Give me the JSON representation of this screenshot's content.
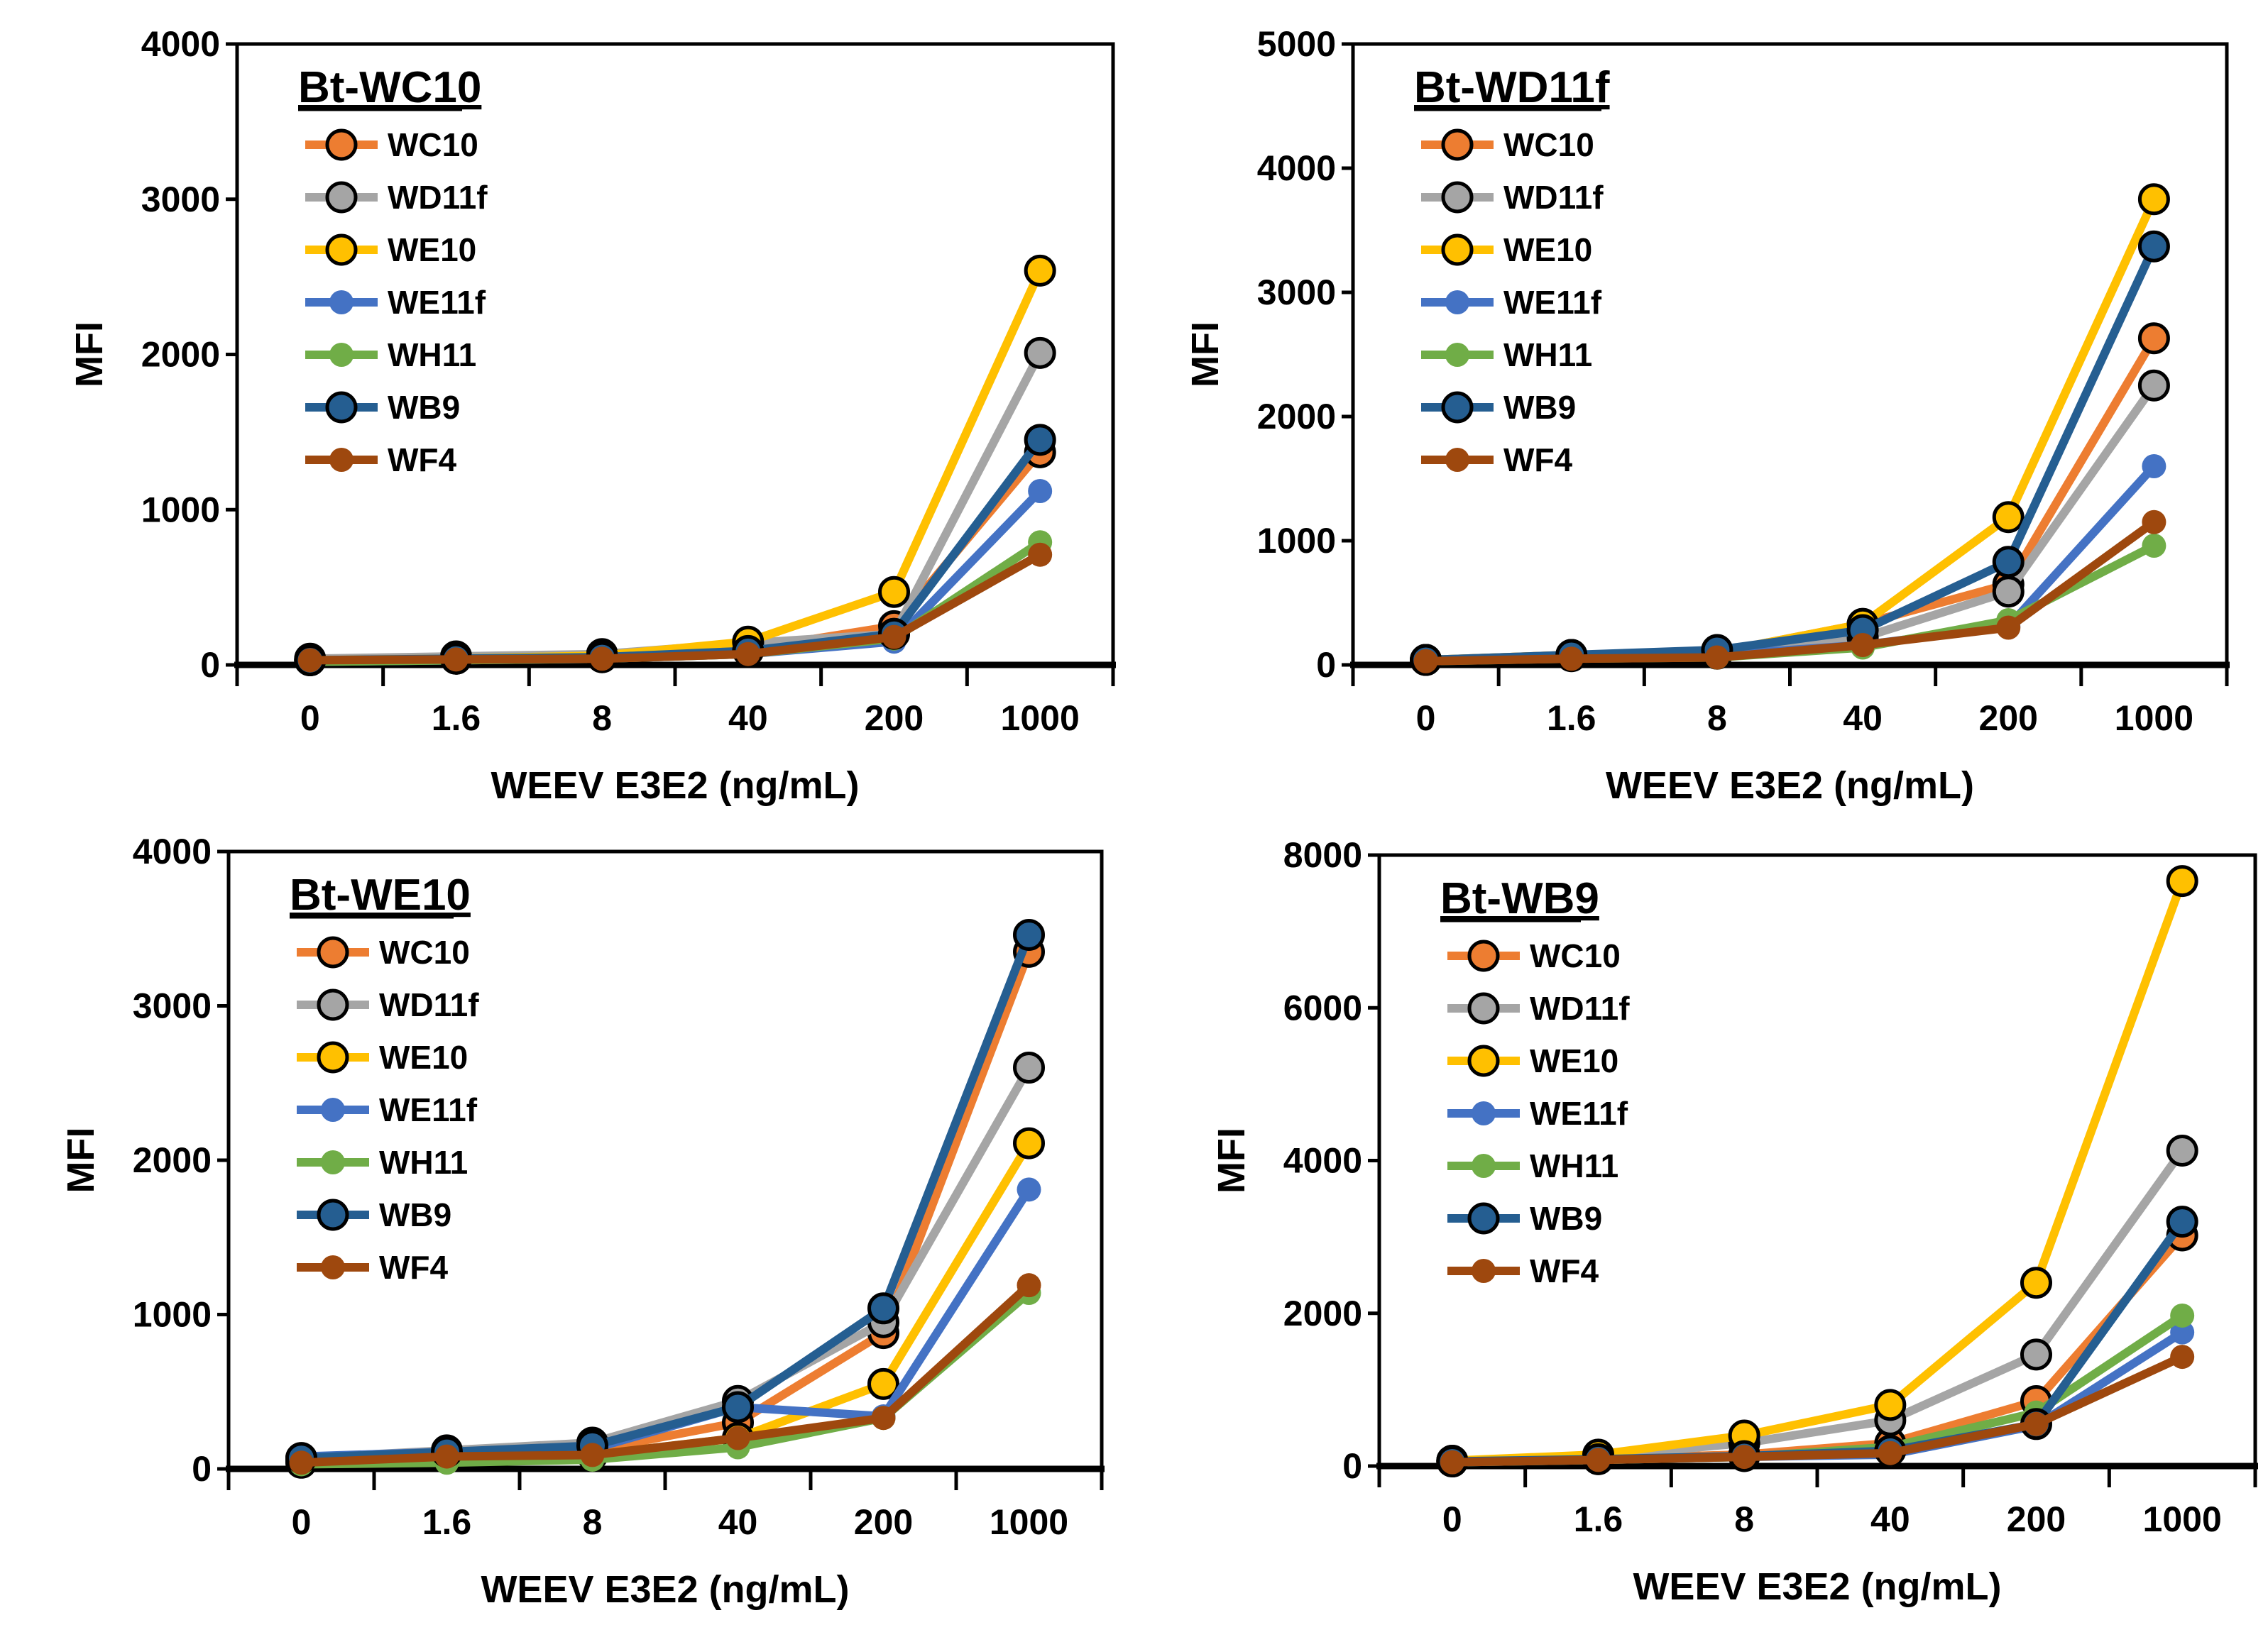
{
  "chart_data": [
    {
      "type": "line",
      "title": "Bt-WC10",
      "xlabel": "WEEV E3E2 (ng/mL)",
      "ylabel": "MFI",
      "categories": [
        "0",
        "1.6",
        "8",
        "40",
        "200",
        "1000"
      ],
      "ylim": [
        0,
        4000
      ],
      "yticks": [
        0,
        1000,
        2000,
        3000,
        4000
      ],
      "legend": "top-left",
      "grid": false,
      "series": [
        {
          "name": "WC10",
          "values": [
            30,
            40,
            50,
            100,
            250,
            1370
          ]
        },
        {
          "name": "WD11f",
          "values": [
            40,
            55,
            70,
            140,
            200,
            2010
          ]
        },
        {
          "name": "WE10",
          "values": [
            30,
            40,
            60,
            150,
            470,
            2540
          ]
        },
        {
          "name": "WE11f",
          "values": [
            20,
            30,
            40,
            70,
            150,
            1120
          ]
        },
        {
          "name": "WH11",
          "values": [
            20,
            30,
            40,
            70,
            170,
            790
          ]
        },
        {
          "name": "WB9",
          "values": [
            30,
            40,
            50,
            90,
            200,
            1450
          ]
        },
        {
          "name": "WF4",
          "values": [
            30,
            35,
            40,
            70,
            180,
            710
          ]
        }
      ]
    },
    {
      "type": "line",
      "title": "Bt-WD11f",
      "xlabel": "WEEV E3E2 (ng/mL)",
      "ylabel": "MFI",
      "categories": [
        "0",
        "1.6",
        "8",
        "40",
        "200",
        "1000"
      ],
      "ylim": [
        0,
        5000
      ],
      "yticks": [
        0,
        1000,
        2000,
        3000,
        4000,
        5000
      ],
      "legend": "top-left",
      "grid": false,
      "series": [
        {
          "name": "WC10",
          "values": [
            40,
            80,
            100,
            330,
            650,
            2630
          ]
        },
        {
          "name": "WD11f",
          "values": [
            40,
            70,
            90,
            220,
            590,
            2250
          ]
        },
        {
          "name": "WE10",
          "values": [
            40,
            80,
            100,
            330,
            1190,
            3750
          ]
        },
        {
          "name": "WE11f",
          "values": [
            30,
            60,
            80,
            160,
            310,
            1600
          ]
        },
        {
          "name": "WH11",
          "values": [
            30,
            50,
            60,
            140,
            360,
            960
          ]
        },
        {
          "name": "WB9",
          "values": [
            40,
            80,
            120,
            280,
            830,
            3370
          ]
        },
        {
          "name": "WF4",
          "values": [
            30,
            50,
            60,
            160,
            300,
            1150
          ]
        }
      ]
    },
    {
      "type": "line",
      "title": "Bt-WE10",
      "xlabel": "WEEV E3E2 (ng/mL)",
      "ylabel": "MFI",
      "categories": [
        "0",
        "1.6",
        "8",
        "40",
        "200",
        "1000"
      ],
      "ylim": [
        0,
        4000
      ],
      "yticks": [
        0,
        1000,
        2000,
        3000,
        4000
      ],
      "legend": "top-left",
      "grid": false,
      "series": [
        {
          "name": "WC10",
          "values": [
            50,
            90,
            120,
            300,
            880,
            3350
          ]
        },
        {
          "name": "WD11f",
          "values": [
            70,
            120,
            170,
            440,
            950,
            2600
          ]
        },
        {
          "name": "WE10",
          "values": [
            40,
            70,
            90,
            200,
            550,
            2110
          ]
        },
        {
          "name": "WE11f",
          "values": [
            80,
            110,
            130,
            400,
            340,
            1810
          ]
        },
        {
          "name": "WH11",
          "values": [
            30,
            40,
            60,
            140,
            330,
            1140
          ]
        },
        {
          "name": "WB9",
          "values": [
            70,
            110,
            150,
            400,
            1040,
            3460
          ]
        },
        {
          "name": "WF4",
          "values": [
            40,
            80,
            90,
            200,
            330,
            1190
          ]
        }
      ]
    },
    {
      "type": "line",
      "title": "Bt-WB9",
      "xlabel": "WEEV E3E2 (ng/mL)",
      "ylabel": "MFI",
      "categories": [
        "0",
        "1.6",
        "8",
        "40",
        "200",
        "1000"
      ],
      "ylim": [
        0,
        8000
      ],
      "yticks": [
        0,
        2000,
        4000,
        6000,
        8000
      ],
      "legend": "top-left",
      "grid": false,
      "series": [
        {
          "name": "WC10",
          "values": [
            60,
            100,
            150,
            300,
            850,
            3020
          ]
        },
        {
          "name": "WD11f",
          "values": [
            70,
            130,
            300,
            600,
            1460,
            4130
          ]
        },
        {
          "name": "WE10",
          "values": [
            70,
            150,
            400,
            800,
            2400,
            7660
          ]
        },
        {
          "name": "WE11f",
          "values": [
            50,
            80,
            120,
            150,
            530,
            1750
          ]
        },
        {
          "name": "WH11",
          "values": [
            50,
            80,
            120,
            250,
            700,
            1970
          ]
        },
        {
          "name": "WB9",
          "values": [
            60,
            90,
            130,
            200,
            550,
            3200
          ]
        },
        {
          "name": "WF4",
          "values": [
            50,
            80,
            120,
            170,
            550,
            1430
          ]
        }
      ]
    }
  ],
  "series_style": {
    "WC10": {
      "color": "#ED7D31",
      "outlined": true
    },
    "WD11f": {
      "color": "#A5A5A5",
      "outlined": true
    },
    "WE10": {
      "color": "#FFC000",
      "outlined": true
    },
    "WE11f": {
      "color": "#4472C4",
      "outlined": false
    },
    "WH11": {
      "color": "#70AD47",
      "outlined": false
    },
    "WB9": {
      "color": "#255E91",
      "outlined": true
    },
    "WF4": {
      "color": "#9E480E",
      "outlined": false
    }
  }
}
